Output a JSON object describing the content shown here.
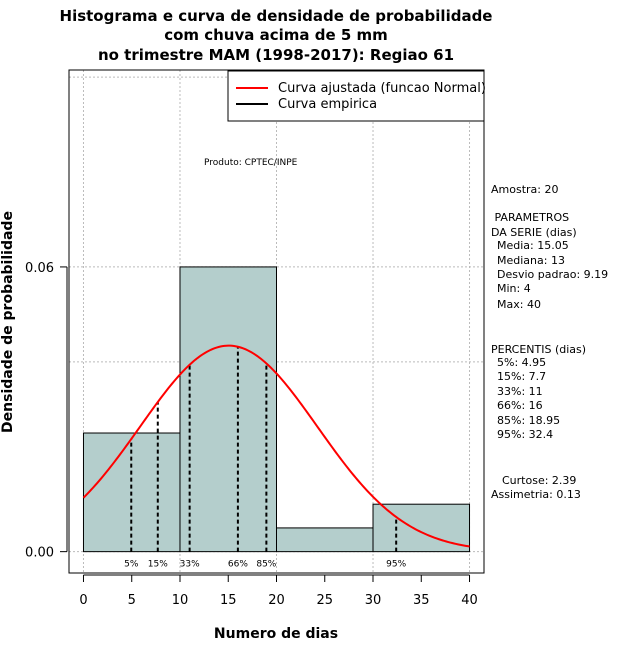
{
  "chart_data": {
    "type": "histogram",
    "title": [
      "Histograma e curva de densidade de probabilidade",
      "com chuva acima de 5 mm",
      "no trimestre MAM (1998-2017): Regiao 61"
    ],
    "xlabel": "Numero de dias",
    "ylabel": "Densidade de probabilidade",
    "xlim": [
      -1.5,
      41.5
    ],
    "ylim": [
      -0.0045,
      0.1015
    ],
    "xticks": [
      0,
      5,
      10,
      15,
      20,
      25,
      30,
      35,
      40
    ],
    "yticks": [
      0.0,
      0.06
    ],
    "ytick_labels": [
      "0.00",
      "0.06"
    ],
    "xgrid": [
      0,
      10,
      20,
      30,
      40
    ],
    "ygrid": [
      0.0,
      0.06
    ],
    "extra_hgrid": [
      0.04,
      0.1
    ],
    "bins": [
      {
        "from": 0,
        "to": 10,
        "density": 0.025
      },
      {
        "from": 10,
        "to": 20,
        "density": 0.06
      },
      {
        "from": 20,
        "to": 30,
        "density": 0.005
      },
      {
        "from": 30,
        "to": 40,
        "density": 0.01
      }
    ],
    "normal_curve": {
      "mean": 15.05,
      "sd": 9.19,
      "x_range": [
        0,
        40
      ],
      "color": "#ff0000"
    },
    "percentile_lines": [
      {
        "label": "5%",
        "x": 4.95
      },
      {
        "label": "15%",
        "x": 7.7
      },
      {
        "label": "33%",
        "x": 11
      },
      {
        "label": "66%",
        "x": 16
      },
      {
        "label": "85%",
        "x": 18.95
      },
      {
        "label": "95%",
        "x": 32.4
      }
    ],
    "legend": {
      "position": "top-right",
      "entries": [
        {
          "label": "Curva ajustada (funcao Normal)",
          "color": "#ff0000"
        },
        {
          "label": "Curva empirica",
          "color": "#000000"
        }
      ]
    },
    "product_label": "Produto: CPTEC/INPE",
    "bar_color": "#b4cecc"
  },
  "side_panel": {
    "amostra": "Amostra: 20",
    "parametros_title": " PARAMETROS",
    "parametros_sub": "DA SERIE (dias)",
    "media": "Media: 15.05",
    "mediana": "Mediana: 13",
    "desvio": "Desvio padrao: 9.19",
    "min": "Min: 4",
    "max": "Max: 40",
    "percentis_title": "PERCENTIS (dias)",
    "p5": "5%: 4.95",
    "p15": "15%: 7.7",
    "p33": "33%: 11",
    "p66": "66%: 16",
    "p85": "85%: 18.95",
    "p95": "95%: 32.4",
    "curtose": "Curtose: 2.39",
    "assimetria": "Assimetria: 0.13"
  }
}
